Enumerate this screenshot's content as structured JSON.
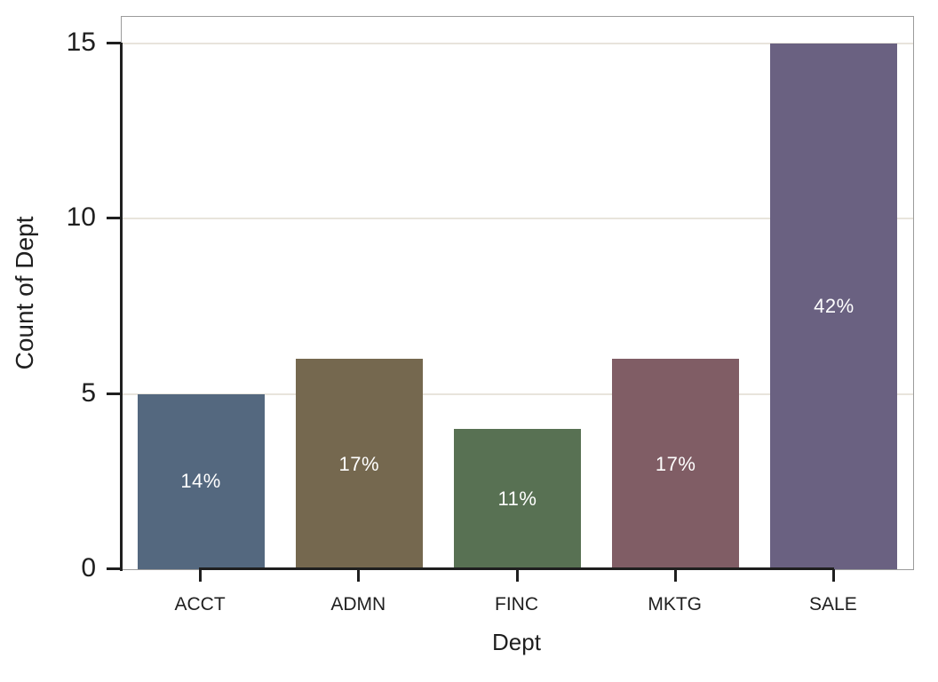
{
  "chart_data": {
    "type": "bar",
    "title": "",
    "xlabel": "Dept",
    "ylabel": "Count of Dept",
    "categories": [
      "ACCT",
      "ADMN",
      "FINC",
      "MKTG",
      "SALE"
    ],
    "values": [
      5,
      6,
      4,
      6,
      15
    ],
    "bar_labels": [
      "14%",
      "17%",
      "11%",
      "17%",
      "42%"
    ],
    "bar_colors": [
      "#54687f",
      "#75684f",
      "#587153",
      "#805d65",
      "#6a6181"
    ],
    "bar_label_color": "#ffffff",
    "ylim": [
      0,
      15
    ],
    "yticks": [
      0,
      5,
      10,
      15
    ],
    "grid": "horizontal-only",
    "gridline_color": "#e8e4dc",
    "panel_border_color": "#9b9b9b",
    "axis_line_color": "#1f1f1f",
    "legend": "none"
  }
}
